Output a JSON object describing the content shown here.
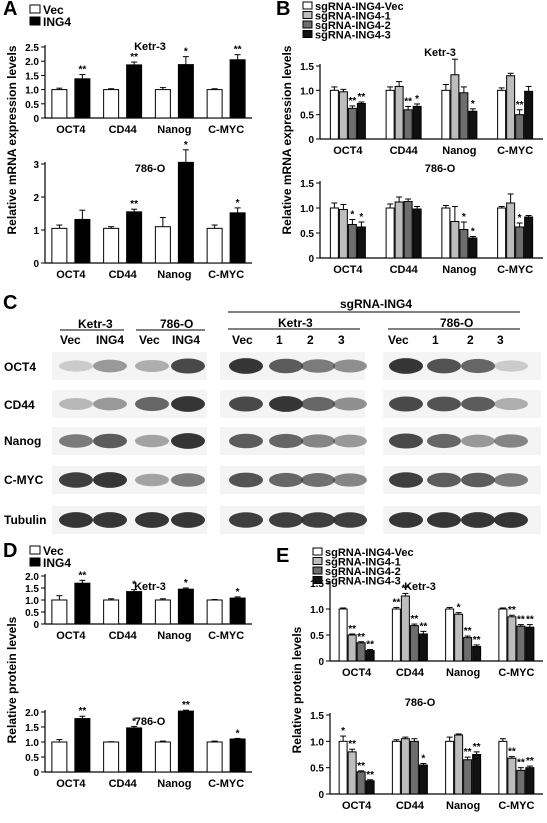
{
  "panels": {
    "A": "A",
    "B": "B",
    "C": "C",
    "D": "D",
    "E": "E"
  },
  "colors": {
    "bar_vec": "#ffffff",
    "bar_treat": "#000000",
    "grey1": "#bdbdbd",
    "grey2": "#6e6e6e",
    "grey3": "#111111",
    "edge": "#000000",
    "band": "#2a2a2a"
  },
  "western": {
    "left_groups": [
      "Ketr-3",
      "786-O"
    ],
    "left_lanes": [
      "Vec",
      "ING4",
      "Vec",
      "ING4"
    ],
    "sg_title": "sgRNA-ING4",
    "mid_group": "Ketr-3",
    "mid_lanes": [
      "Vec",
      "1",
      "2",
      "3"
    ],
    "right_group": "786-O",
    "right_lanes": [
      "Vec",
      "1",
      "2",
      "3"
    ],
    "rows": [
      "OCT4",
      "CD44",
      "Nanog",
      "C-MYC",
      "Tubulin"
    ]
  },
  "chart_data": [
    {
      "id": "A",
      "type": "bar",
      "title": "Ketr-3",
      "categories": [
        "OCT4",
        "CD44",
        "Nanog",
        "C-MYC"
      ],
      "legend": [
        "Vec",
        "ING4"
      ],
      "ylabel": "Relative mRNA expression levels",
      "ylim": [
        0,
        2.5
      ],
      "yticks": [
        0,
        0.5,
        1.0,
        1.5,
        2.0,
        2.5
      ],
      "series": [
        {
          "name": "Vec",
          "values": [
            1.0,
            1.0,
            1.0,
            1.0
          ],
          "err": [
            0.05,
            0.03,
            0.07,
            0.03
          ]
        },
        {
          "name": "ING4",
          "values": [
            1.38,
            1.87,
            1.88,
            2.05
          ],
          "err": [
            0.15,
            0.1,
            0.28,
            0.18
          ]
        }
      ],
      "stars": [
        [
          "",
          "**"
        ],
        [
          "",
          "**"
        ],
        [
          "",
          "*"
        ],
        [
          "",
          "**"
        ]
      ]
    },
    {
      "id": "A2",
      "type": "bar",
      "title": "786-O",
      "categories": [
        "OCT4",
        "CD44",
        "Nanog",
        "C-MYC"
      ],
      "ylim": [
        0,
        3
      ],
      "yticks": [
        0,
        1,
        2,
        3
      ],
      "series": [
        {
          "name": "Vec",
          "values": [
            1.05,
            1.05,
            1.1,
            1.05
          ],
          "err": [
            0.1,
            0.05,
            0.28,
            0.1
          ]
        },
        {
          "name": "ING4",
          "values": [
            1.32,
            1.55,
            3.05,
            1.52
          ],
          "err": [
            0.28,
            0.08,
            0.38,
            0.15
          ]
        }
      ],
      "stars": [
        [
          "",
          ""
        ],
        [
          "",
          "**"
        ],
        [
          "",
          "*"
        ],
        [
          "",
          "*"
        ]
      ]
    },
    {
      "id": "B",
      "type": "bar",
      "title": "Ketr-3",
      "categories": [
        "OCT4",
        "CD44",
        "Nanog",
        "C-MYC"
      ],
      "legend": [
        "sgRNA-ING4-Vec",
        "sgRNA-ING4-1",
        "sgRNA-ING4-2",
        "sgRNA-ING4-3"
      ],
      "ylabel": "Relative mRNA expression levels",
      "ylim": [
        0,
        1.5
      ],
      "yticks": [
        0,
        0.5,
        1.0,
        1.5
      ],
      "series": [
        {
          "name": "sgRNA-ING4-Vec",
          "values": [
            1.0,
            1.0,
            1.0,
            1.0
          ],
          "err": [
            0.07,
            0.07,
            0.12,
            0.05
          ]
        },
        {
          "name": "sgRNA-ING4-1",
          "values": [
            0.97,
            1.08,
            1.32,
            1.3
          ],
          "err": [
            0.05,
            0.1,
            0.32,
            0.05
          ]
        },
        {
          "name": "sgRNA-ING4-2",
          "values": [
            0.63,
            0.6,
            0.95,
            0.5
          ],
          "err": [
            0.05,
            0.07,
            0.12,
            0.1
          ]
        },
        {
          "name": "sgRNA-ING4-3",
          "values": [
            0.73,
            0.67,
            0.57,
            0.98
          ],
          "err": [
            0.03,
            0.05,
            0.05,
            0.1
          ]
        }
      ],
      "stars": [
        [
          "",
          "",
          "**",
          "**"
        ],
        [
          "",
          "",
          "**",
          "*"
        ],
        [
          "",
          "",
          "",
          "*"
        ],
        [
          "",
          "",
          "**",
          ""
        ]
      ]
    },
    {
      "id": "B2",
      "type": "bar",
      "title": "786-O",
      "categories": [
        "OCT4",
        "CD44",
        "Nanog",
        "C-MYC"
      ],
      "ylim": [
        0,
        1.5
      ],
      "yticks": [
        0,
        0.5,
        1.0,
        1.5
      ],
      "series": [
        {
          "name": "sgRNA-ING4-Vec",
          "values": [
            1.0,
            1.0,
            1.0,
            1.0
          ],
          "err": [
            0.1,
            0.08,
            0.05,
            0.03
          ]
        },
        {
          "name": "sgRNA-ING4-1",
          "values": [
            0.97,
            1.12,
            0.73,
            1.1
          ],
          "err": [
            0.1,
            0.1,
            0.3,
            0.18
          ]
        },
        {
          "name": "sgRNA-ING4-2",
          "values": [
            0.67,
            1.13,
            0.57,
            0.62
          ],
          "err": [
            0.1,
            0.05,
            0.15,
            0.08
          ]
        },
        {
          "name": "sgRNA-ING4-3",
          "values": [
            0.62,
            0.98,
            0.4,
            0.82
          ],
          "err": [
            0.1,
            0.05,
            0.03,
            0.03
          ]
        }
      ],
      "stars": [
        [
          "",
          "",
          "*",
          "*"
        ],
        [
          "",
          "",
          "",
          ""
        ],
        [
          "",
          "",
          "*",
          "*"
        ],
        [
          "",
          "",
          "*",
          ""
        ]
      ]
    },
    {
      "id": "D",
      "type": "bar",
      "title": "Ketr-3",
      "categories": [
        "OCT4",
        "CD44",
        "Nanog",
        "C-MYC"
      ],
      "legend": [
        "Vec",
        "ING4"
      ],
      "ylabel": "Relative protein levels",
      "ylim": [
        0,
        2.0
      ],
      "yticks": [
        0,
        0.5,
        1.0,
        1.5,
        2.0
      ],
      "series": [
        {
          "name": "Vec",
          "values": [
            1.0,
            1.0,
            1.0,
            1.0
          ],
          "err": [
            0.18,
            0.05,
            0.05,
            0.02
          ]
        },
        {
          "name": "ING4",
          "values": [
            1.7,
            1.35,
            1.45,
            1.08
          ],
          "err": [
            0.12,
            0.08,
            0.05,
            0.05
          ]
        }
      ],
      "stars": [
        [
          "",
          "**"
        ],
        [
          "",
          "*"
        ],
        [
          "",
          "*"
        ],
        [
          "",
          "*"
        ]
      ]
    },
    {
      "id": "D2",
      "type": "bar",
      "title": "786-O",
      "categories": [
        "OCT4",
        "CD44",
        "Nanog",
        "C-MYC"
      ],
      "ylim": [
        0,
        2.0
      ],
      "yticks": [
        0,
        0.5,
        1.0,
        1.5,
        2.0
      ],
      "series": [
        {
          "name": "Vec",
          "values": [
            1.0,
            1.0,
            1.0,
            1.0
          ],
          "err": [
            0.08,
            0.01,
            0.03,
            0.03
          ]
        },
        {
          "name": "ING4",
          "values": [
            1.78,
            1.47,
            2.03,
            1.1
          ],
          "err": [
            0.08,
            0.05,
            0.03,
            0.02
          ]
        }
      ],
      "stars": [
        [
          "",
          "**"
        ],
        [
          "",
          "*"
        ],
        [
          "",
          "**"
        ],
        [
          "",
          "*"
        ]
      ]
    },
    {
      "id": "E",
      "type": "bar",
      "title": "Ketr-3",
      "categories": [
        "OCT4",
        "CD44",
        "Nanog",
        "C-MYC"
      ],
      "legend": [
        "sgRNA-ING4-Vec",
        "sgRNA-ING4-1",
        "sgRNA-ING4-2",
        "sgRNA-ING4-3"
      ],
      "ylabel": "Relative protein levels",
      "ylim": [
        0,
        1.5
      ],
      "yticks": [
        0,
        0.5,
        1.0,
        1.5
      ],
      "series": [
        {
          "name": "sgRNA-ING4-Vec",
          "values": [
            1.0,
            1.0,
            1.0,
            1.0
          ],
          "err": [
            0.02,
            0.03,
            0.03,
            0.02
          ]
        },
        {
          "name": "sgRNA-ING4-1",
          "values": [
            0.5,
            1.25,
            0.9,
            0.85
          ],
          "err": [
            0.02,
            0.05,
            0.03,
            0.03
          ]
        },
        {
          "name": "sgRNA-ING4-2",
          "values": [
            0.35,
            0.68,
            0.45,
            0.67
          ],
          "err": [
            0.02,
            0.03,
            0.03,
            0.03
          ]
        },
        {
          "name": "sgRNA-ING4-3",
          "values": [
            0.2,
            0.52,
            0.28,
            0.65
          ],
          "err": [
            0.02,
            0.05,
            0.03,
            0.05
          ]
        }
      ],
      "stars": [
        [
          "",
          "**",
          "**",
          "**"
        ],
        [
          "**",
          "**",
          "**",
          "**"
        ],
        [
          "",
          "*",
          "**",
          "**"
        ],
        [
          "",
          "**",
          "**",
          "**"
        ]
      ]
    },
    {
      "id": "E2",
      "type": "bar",
      "title": "786-O",
      "categories": [
        "OCT4",
        "CD44",
        "Nanog",
        "C-MYC"
      ],
      "ylim": [
        0,
        1.5
      ],
      "yticks": [
        0,
        0.5,
        1.0,
        1.5
      ],
      "series": [
        {
          "name": "sgRNA-ING4-Vec",
          "values": [
            1.0,
            1.0,
            1.0,
            1.0
          ],
          "err": [
            0.1,
            0.03,
            0.08,
            0.05
          ]
        },
        {
          "name": "sgRNA-ING4-1",
          "values": [
            0.8,
            1.05,
            1.12,
            0.68
          ],
          "err": [
            0.05,
            0.03,
            0.02,
            0.03
          ]
        },
        {
          "name": "sgRNA-ING4-2",
          "values": [
            0.42,
            1.0,
            0.65,
            0.45
          ],
          "err": [
            0.02,
            0.05,
            0.05,
            0.05
          ]
        },
        {
          "name": "sgRNA-ING4-3",
          "values": [
            0.25,
            0.55,
            0.75,
            0.5
          ],
          "err": [
            0.02,
            0.03,
            0.05,
            0.03
          ]
        }
      ],
      "stars": [
        [
          "*",
          "**",
          "**",
          "**"
        ],
        [
          "",
          "",
          "",
          "*"
        ],
        [
          "",
          "",
          "**",
          "**"
        ],
        [
          "",
          "**",
          "**",
          "**"
        ]
      ]
    }
  ]
}
